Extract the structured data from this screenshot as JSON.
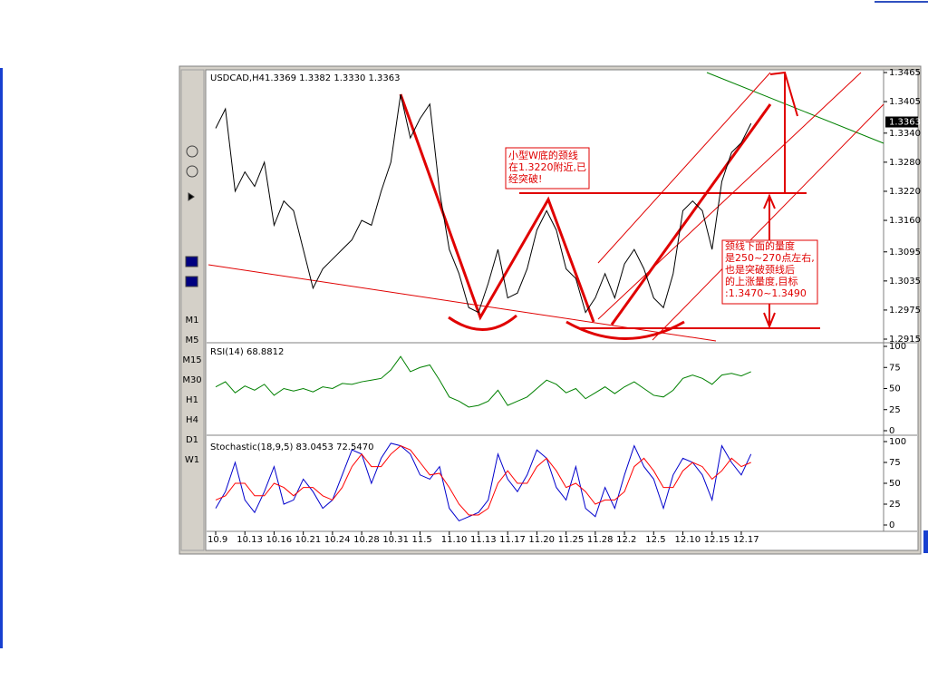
{
  "toolbar": {
    "timeframes": [
      "M1",
      "M5",
      "M15",
      "M30",
      "H1",
      "H4",
      "D1",
      "W1"
    ]
  },
  "annotations": {
    "note_1": [
      "小型W底的颈线",
      "在1.3220附近,已",
      "经突破!"
    ],
    "note_2": [
      "颈线下面的量度",
      "是250~270点左右,",
      "也是突破颈线后",
      "的上涨量度,目标",
      ":1.3470~1.3490"
    ]
  },
  "chart_data": [
    {
      "type": "line",
      "title": "USDCAD,H4",
      "subtitle": "1.3369 1.3382 1.3330 1.3363",
      "categories": [
        "10.9",
        null,
        null,
        "10.13",
        null,
        null,
        "10.16",
        null,
        null,
        "10.21",
        null,
        null,
        "10.24",
        null,
        null,
        "10.28",
        null,
        null,
        "10.31",
        null,
        null,
        "11.5",
        null,
        null,
        "11.10",
        null,
        null,
        "11.13",
        null,
        null,
        "11.17",
        null,
        null,
        "11.20",
        null,
        null,
        "11.25",
        null,
        null,
        "11.28",
        null,
        null,
        "12.2",
        null,
        null,
        "12.5",
        null,
        null,
        "12.10",
        null,
        null,
        "12.15",
        null,
        null,
        "12.17",
        null
      ],
      "values": [
        1.335,
        1.339,
        1.322,
        1.326,
        1.323,
        1.328,
        1.315,
        1.32,
        1.318,
        1.31,
        1.302,
        1.306,
        1.308,
        1.31,
        1.312,
        1.316,
        1.315,
        1.322,
        1.328,
        1.342,
        1.333,
        1.337,
        1.34,
        1.322,
        1.31,
        1.305,
        1.298,
        1.297,
        1.303,
        1.31,
        1.3,
        1.301,
        1.306,
        1.314,
        1.318,
        1.314,
        1.306,
        1.304,
        1.297,
        1.3,
        1.305,
        1.3,
        1.307,
        1.31,
        1.306,
        1.3,
        1.298,
        1.305,
        1.318,
        1.32,
        1.318,
        1.31,
        1.324,
        1.33,
        1.332,
        1.336
      ],
      "color": "#000000",
      "last": 1.3363,
      "ylim": [
        1.2915,
        1.3465
      ],
      "yticks": [
        1.3465,
        1.3405,
        {
          "value": 1.334,
          "label": "1.3340"
        },
        {
          "value": 1.328,
          "label": "1.3280"
        },
        {
          "value": 1.322,
          "label": "1.3220"
        },
        {
          "value": 1.316,
          "label": "1.3160"
        },
        1.3095,
        1.3035,
        1.2975,
        1.2915
      ]
    },
    {
      "type": "line",
      "title": "RSI(14) 68.8812",
      "values": [
        52,
        58,
        45,
        53,
        48,
        55,
        42,
        50,
        47,
        50,
        46,
        52,
        50,
        56,
        55,
        58,
        60,
        62,
        72,
        88,
        70,
        75,
        78,
        60,
        40,
        35,
        28,
        30,
        35,
        48,
        30,
        35,
        40,
        50,
        60,
        55,
        45,
        50,
        38,
        45,
        52,
        44,
        52,
        58,
        50,
        42,
        40,
        48,
        62,
        66,
        62,
        55,
        66,
        68,
        65,
        70
      ],
      "color": "#008000",
      "ylim": [
        0,
        100
      ],
      "yticks": [
        100,
        75,
        50,
        25,
        0
      ]
    },
    {
      "type": "line",
      "title": "Stochastic(18,9,5) 83.0453 72.5470",
      "series": [
        {
          "color": "#0000cc",
          "values": [
            20,
            40,
            75,
            30,
            15,
            40,
            70,
            25,
            30,
            55,
            40,
            20,
            30,
            60,
            90,
            85,
            50,
            80,
            98,
            95,
            85,
            60,
            55,
            70,
            20,
            5,
            10,
            15,
            30,
            85,
            55,
            40,
            60,
            90,
            80,
            45,
            30,
            70,
            20,
            10,
            45,
            20,
            60,
            95,
            70,
            55,
            20,
            60,
            80,
            75,
            60,
            30,
            95,
            75,
            60,
            85
          ]
        },
        {
          "color": "#ff0000",
          "values": [
            30,
            35,
            50,
            50,
            35,
            35,
            50,
            45,
            35,
            45,
            45,
            35,
            30,
            45,
            70,
            85,
            70,
            70,
            85,
            95,
            90,
            75,
            60,
            62,
            45,
            25,
            12,
            12,
            20,
            50,
            65,
            50,
            50,
            70,
            80,
            65,
            45,
            50,
            40,
            25,
            30,
            30,
            40,
            70,
            80,
            65,
            45,
            45,
            65,
            75,
            70,
            55,
            65,
            80,
            70,
            75
          ]
        }
      ],
      "ylim": [
        0,
        100
      ],
      "yticks": [
        100,
        75,
        50,
        25,
        0
      ]
    }
  ]
}
